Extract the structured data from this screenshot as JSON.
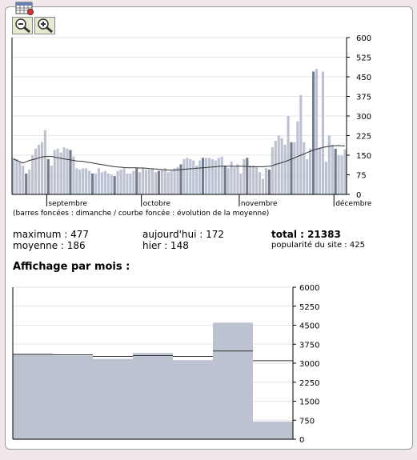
{
  "icons": {
    "calendar": "calendar-grid-icon",
    "zoom_out": "zoom-out-icon",
    "zoom_in": "zoom-in-icon"
  },
  "colors": {
    "bar_light": "#bcc2d0",
    "bar_dark": "#717c8c",
    "average_line": "#333333",
    "axis": "#000000",
    "grid": "#e6e6e6"
  },
  "caption": "(barres foncées : dimanche / courbe foncée : évolution de la moyenne)",
  "stats": {
    "maximum": "maximum : 477",
    "moyenne": "moyenne : 186",
    "aujourdhui": "aujourd'hui : 172",
    "hier": "hier : 148",
    "total": "total : 21383",
    "popularite": "popularité du site : 425"
  },
  "monthly_title": "Affichage par mois :",
  "chart_data": [
    {
      "type": "bar",
      "name": "daily",
      "y_ticks": [
        0,
        75,
        150,
        225,
        300,
        375,
        450,
        525,
        600
      ],
      "y_tick_labels": [
        "0",
        "75",
        "150",
        "225",
        "300",
        "375",
        "450",
        "525",
        "600"
      ],
      "ylim": [
        0,
        600
      ],
      "x_ticks": [
        {
          "label": "septembre",
          "day": 11
        },
        {
          "label": "octobre",
          "day": 41
        },
        {
          "label": "novembre",
          "day": 72
        },
        {
          "label": "décembre",
          "day": 102
        }
      ],
      "days": 106,
      "values": [
        140,
        135,
        125,
        110,
        80,
        95,
        150,
        175,
        190,
        200,
        245,
        135,
        110,
        170,
        175,
        160,
        180,
        175,
        170,
        145,
        100,
        95,
        100,
        100,
        90,
        80,
        80,
        100,
        85,
        90,
        80,
        75,
        70,
        90,
        95,
        100,
        80,
        80,
        90,
        100,
        85,
        100,
        95,
        95,
        100,
        85,
        90,
        95,
        100,
        85,
        90,
        100,
        105,
        115,
        135,
        140,
        135,
        130,
        110,
        130,
        140,
        140,
        140,
        135,
        130,
        140,
        145,
        110,
        100,
        125,
        105,
        115,
        80,
        135,
        140,
        110,
        110,
        105,
        85,
        60,
        100,
        95,
        180,
        205,
        225,
        215,
        190,
        300,
        200,
        200,
        280,
        380,
        200,
        135,
        175,
        470,
        480,
        180,
        470,
        125,
        225,
        190,
        175,
        150,
        148,
        172
      ],
      "dark": [
        4,
        11,
        18,
        25,
        32,
        39,
        46,
        53,
        60,
        67,
        74,
        81,
        88,
        95,
        102
      ],
      "average": [
        135,
        130,
        125,
        120,
        125,
        130,
        133,
        136,
        140,
        143,
        145,
        145,
        145,
        143,
        140,
        138,
        136,
        134,
        132,
        130,
        128,
        127,
        126,
        124,
        122,
        120,
        118,
        116,
        114,
        112,
        110,
        108,
        106,
        105,
        104,
        103,
        102,
        102,
        102,
        102,
        101,
        101,
        100,
        99,
        98,
        97,
        96,
        95,
        94,
        93,
        93,
        93,
        94,
        95,
        96,
        97,
        98,
        99,
        100,
        101,
        102,
        103,
        104,
        105,
        106,
        107,
        108,
        108,
        108,
        108,
        108,
        108,
        108,
        107,
        107,
        106,
        106,
        106,
        106,
        106,
        107,
        108,
        110,
        115,
        118,
        122,
        125,
        130,
        135,
        140,
        145,
        150,
        155,
        160,
        165,
        170,
        173,
        176,
        180,
        182,
        184,
        186,
        186,
        187,
        186,
        186
      ]
    },
    {
      "type": "bar",
      "name": "monthly",
      "y_ticks": [
        0,
        750,
        1500,
        2250,
        3000,
        3750,
        4500,
        5250,
        6000
      ],
      "y_tick_labels": [
        "0",
        "750",
        "1500",
        "2250",
        "3000",
        "3750",
        "4500",
        "5250",
        "6000"
      ],
      "ylim": [
        0,
        6000
      ],
      "values": [
        3350,
        3300,
        3170,
        3400,
        3120,
        4600,
        700
      ],
      "average": [
        3350,
        3330,
        3270,
        3300,
        3270,
        3480,
        3100
      ]
    }
  ]
}
